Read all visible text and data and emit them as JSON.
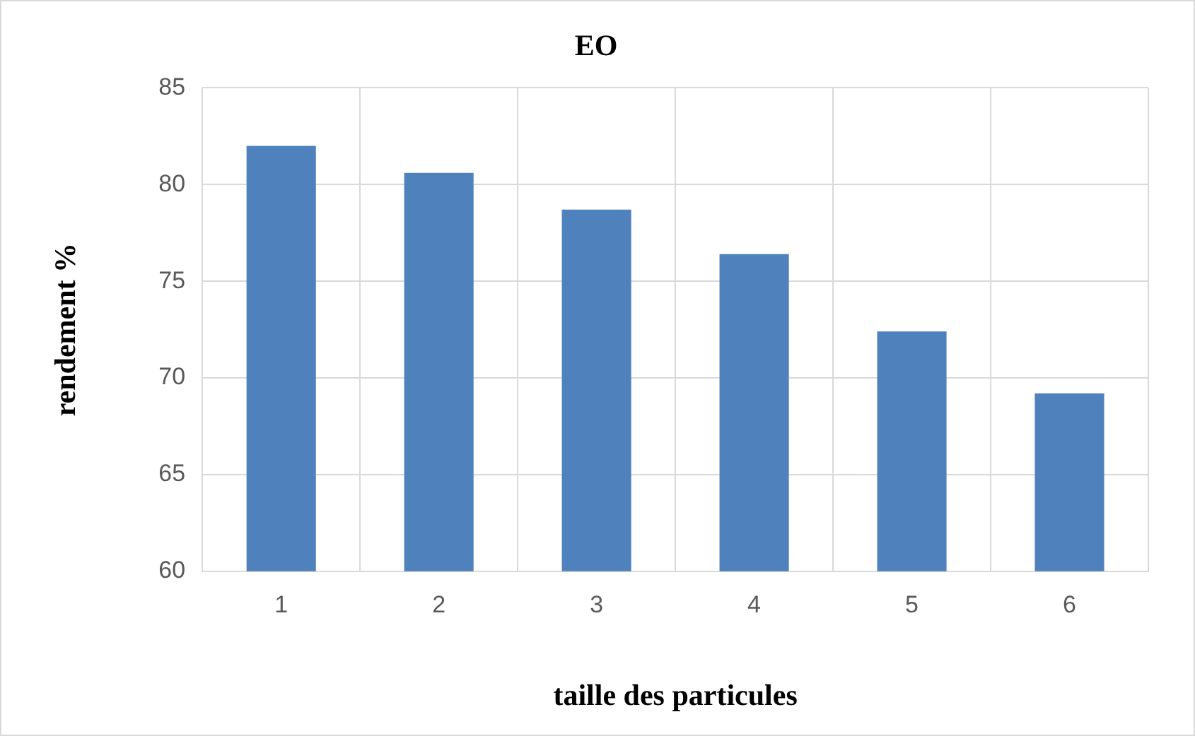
{
  "chart_data": {
    "type": "bar",
    "title": "EO",
    "xlabel": "taille des particules",
    "ylabel": "rendement %",
    "categories": [
      "1",
      "2",
      "3",
      "4",
      "5",
      "6"
    ],
    "series": [
      {
        "color": "#4f81bd",
        "values": [
          82.0,
          80.6,
          78.7,
          76.4,
          72.4,
          69.2
        ]
      }
    ],
    "ylim": [
      60,
      85
    ],
    "yticks": [
      60,
      65,
      70,
      75,
      80,
      85
    ],
    "grid": true,
    "legend": false
  }
}
